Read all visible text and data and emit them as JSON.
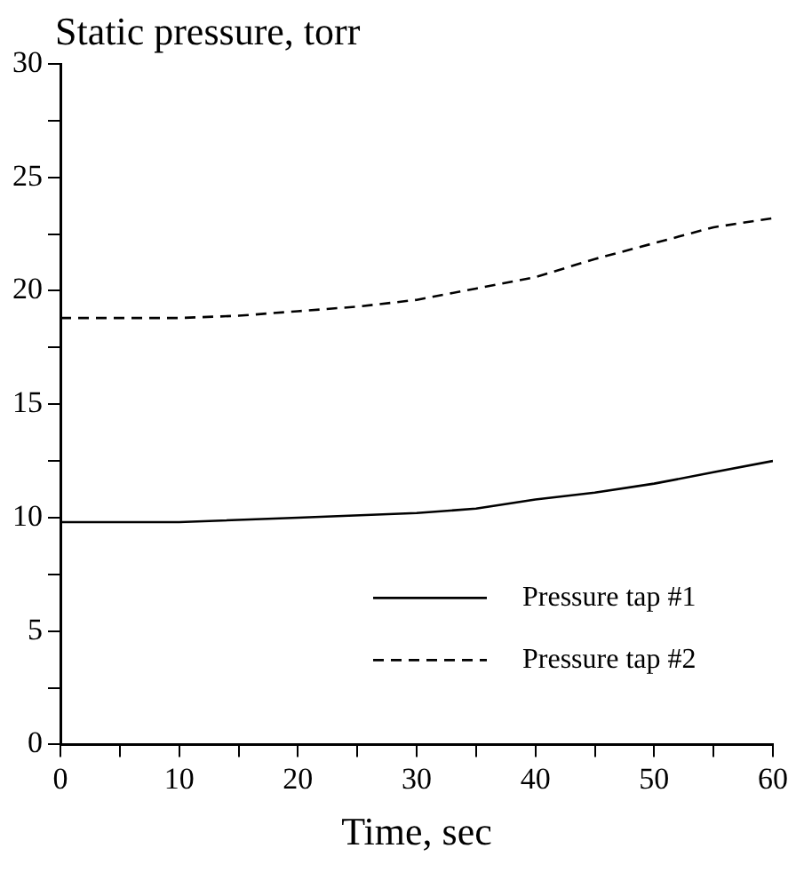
{
  "chart_data": {
    "type": "line",
    "ylabel": "Static pressure, torr",
    "xlabel": "Time, sec",
    "series": [
      {
        "name": "Pressure tap #1",
        "color": "#000000",
        "line_style": "solid",
        "x": [
          0,
          10,
          20,
          30,
          35,
          40,
          45,
          50,
          55,
          60
        ],
        "values": [
          9.8,
          9.8,
          10.0,
          10.2,
          10.4,
          10.8,
          11.1,
          11.5,
          12.0,
          12.5
        ]
      },
      {
        "name": "Pressure tap #2",
        "color": "#000000",
        "line_style": "dashed",
        "x": [
          0,
          10,
          15,
          20,
          25,
          30,
          35,
          40,
          45,
          50,
          55,
          60
        ],
        "values": [
          18.8,
          18.8,
          18.9,
          19.1,
          19.3,
          19.6,
          20.1,
          20.6,
          21.4,
          22.1,
          22.8,
          23.2
        ]
      }
    ],
    "xlim": [
      0,
      60
    ],
    "xticks": [
      0,
      {
        "value": 5,
        "label": null
      },
      10,
      {
        "value": 15,
        "label": null
      },
      20,
      {
        "value": 25,
        "label": null
      },
      30,
      {
        "value": 35,
        "label": null
      },
      40,
      {
        "value": 45,
        "label": null
      },
      50,
      {
        "value": 55,
        "label": null
      },
      60
    ],
    "ylim": [
      0,
      30
    ],
    "yticks": [
      0,
      {
        "value": 2.5,
        "label": null
      },
      5,
      {
        "value": 7.5,
        "label": null
      },
      10,
      {
        "value": 12.5,
        "label": null
      },
      15,
      {
        "value": 17.5,
        "label": null
      },
      20,
      {
        "value": 22.5,
        "label": null
      },
      25,
      {
        "value": 27.5,
        "label": null
      },
      30
    ],
    "grid": false,
    "legend": "bottom right",
    "marker": "none"
  }
}
